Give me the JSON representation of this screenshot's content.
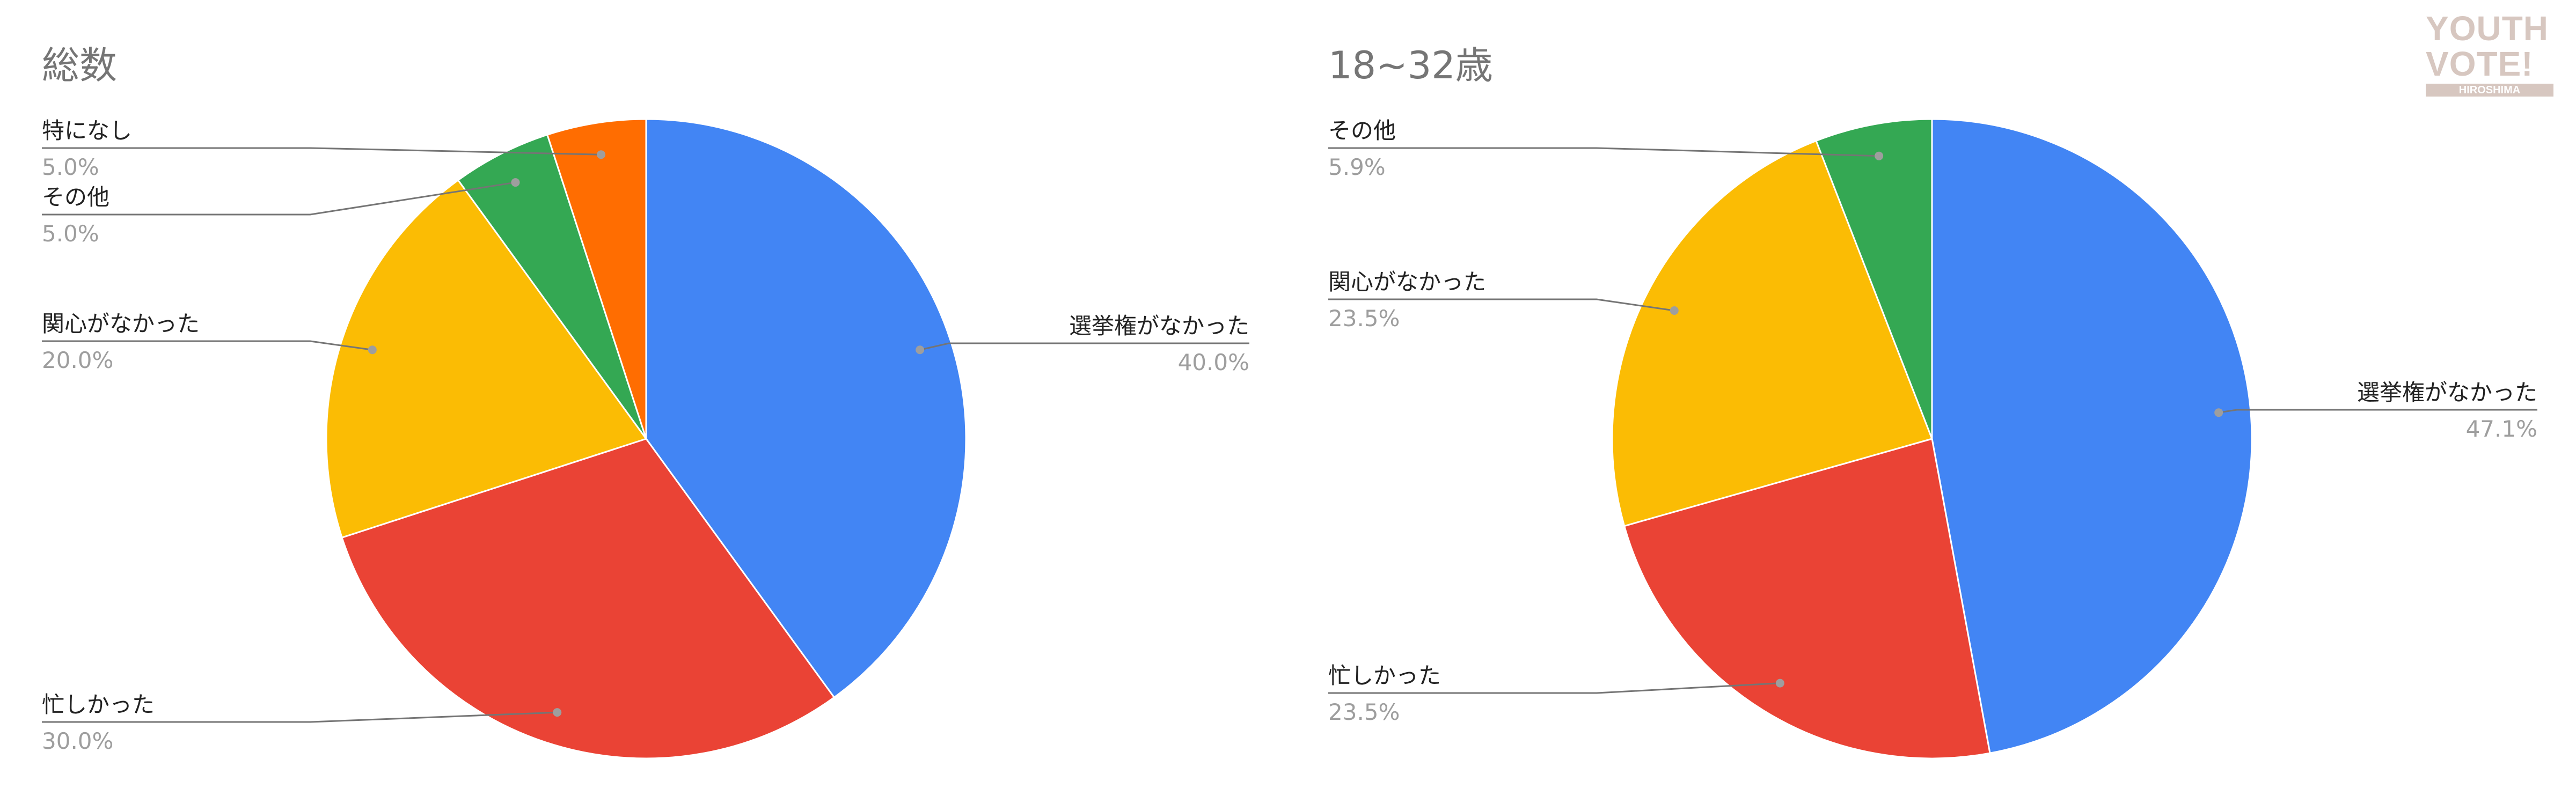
{
  "logo": {
    "line1": "YOUTH",
    "line2": "VOTE!",
    "line3": "HIROSHIMA"
  },
  "colors": {
    "blue": "#4285f4",
    "red": "#ea4335",
    "yellow": "#fbbc04",
    "green": "#34a853",
    "orange": "#ff6d01"
  },
  "chart_data": [
    {
      "type": "pie",
      "title": "総数",
      "slices": [
        {
          "label": "選挙権がなかった",
          "value": 40.0,
          "pct_text": "40.0%",
          "color": "#4285f4"
        },
        {
          "label": "忙しかった",
          "value": 30.0,
          "pct_text": "30.0%",
          "color": "#ea4335"
        },
        {
          "label": "関心がなかった",
          "value": 20.0,
          "pct_text": "20.0%",
          "color": "#fbbc04"
        },
        {
          "label": "その他",
          "value": 5.0,
          "pct_text": "5.0%",
          "color": "#34a853"
        },
        {
          "label": "特になし",
          "value": 5.0,
          "pct_text": "5.0%",
          "color": "#ff6d01"
        }
      ]
    },
    {
      "type": "pie",
      "title": "18~32歳",
      "slices": [
        {
          "label": "選挙権がなかった",
          "value": 47.1,
          "pct_text": "47.1%",
          "color": "#4285f4"
        },
        {
          "label": "忙しかった",
          "value": 23.5,
          "pct_text": "23.5%",
          "color": "#ea4335"
        },
        {
          "label": "関心がなかった",
          "value": 23.5,
          "pct_text": "23.5%",
          "color": "#fbbc04"
        },
        {
          "label": "その他",
          "value": 5.9,
          "pct_text": "5.9%",
          "color": "#34a853"
        }
      ]
    }
  ]
}
